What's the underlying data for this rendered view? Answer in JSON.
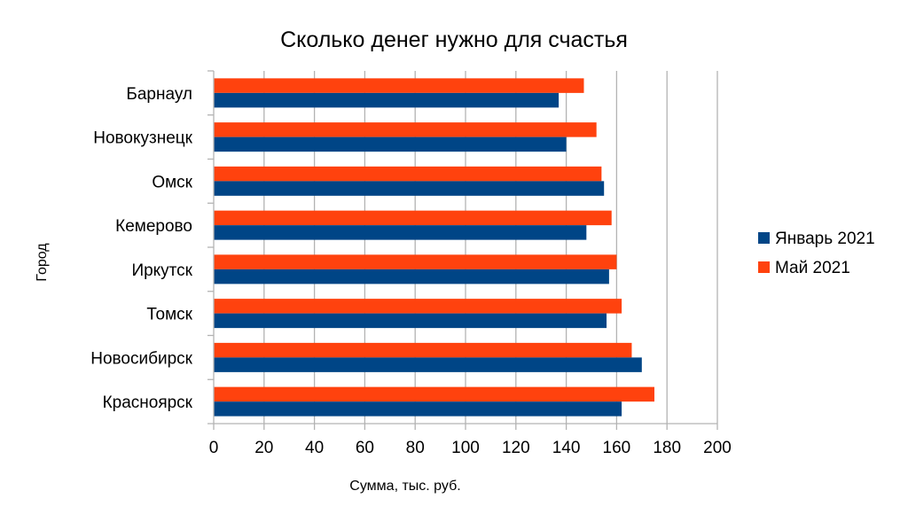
{
  "chart_data": {
    "type": "bar",
    "orientation": "horizontal",
    "title": "Сколько денег нужно для счастья",
    "xlabel": "Сумма, тыс. руб.",
    "ylabel": "Город",
    "xlim": [
      0,
      200
    ],
    "xticks": [
      "0",
      "20",
      "40",
      "60",
      "80",
      "100",
      "120",
      "140",
      "160",
      "180",
      "200"
    ],
    "grid": true,
    "legend_position": "right",
    "categories": [
      "Барнаул",
      "Новокузнецк",
      "Омск",
      "Кемерово",
      "Иркутск",
      "Томск",
      "Новосибирск",
      "Красноярск"
    ],
    "series": [
      {
        "name": "Январь 2021",
        "color": "#004586",
        "values": [
          137,
          140,
          155,
          148,
          157,
          156,
          170,
          162
        ]
      },
      {
        "name": "Май 2021",
        "color": "#ff420e",
        "values": [
          147,
          152,
          154,
          158,
          160,
          162,
          166,
          175
        ]
      }
    ]
  }
}
